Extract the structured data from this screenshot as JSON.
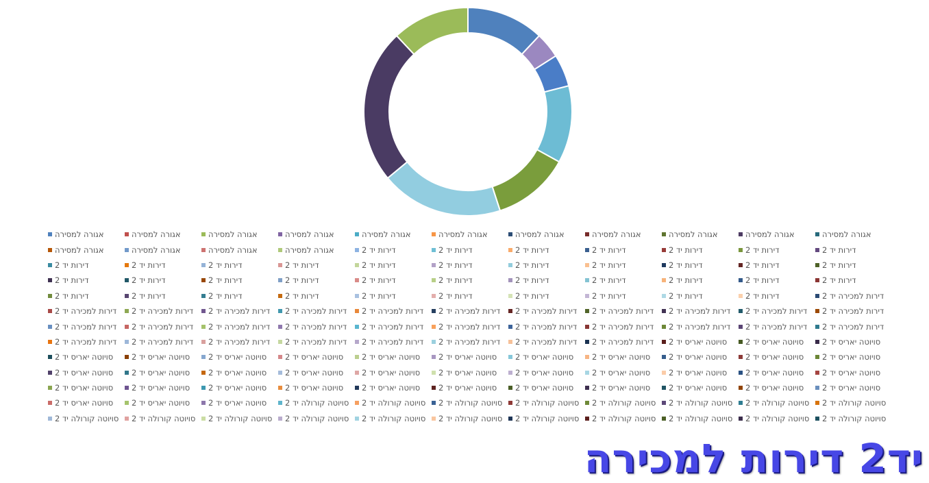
{
  "chart_data": {
    "type": "pie",
    "title": "",
    "donut": true,
    "legend_position": "bottom",
    "slices": [
      {
        "label": "אגורה למסירה",
        "value": 12,
        "color": "#4f81bd"
      },
      {
        "label": "אגורה למסירה",
        "value": 4,
        "color": "#9b88c0"
      },
      {
        "label": "דירות יד 2",
        "value": 5,
        "color": "#4a7dc7"
      },
      {
        "label": "דירות יד 2",
        "value": 12,
        "color": "#6dbcd4"
      },
      {
        "label": "דירות למכירה יד 2",
        "value": 12,
        "color": "#7a9d3c"
      },
      {
        "label": "סויוטה יאריס יד 2",
        "value": 19,
        "color": "#92cde0"
      },
      {
        "label": "סויוטה קורולה יד 2",
        "value": 24,
        "color": "#4a3b63"
      },
      {
        "label": "סויוטה קורולה יד 2",
        "value": 12,
        "color": "#9bbb59"
      }
    ],
    "legend": [
      {
        "label": "אגורה למסירה",
        "color": "#4f81bd"
      },
      {
        "label": "אגורה למסירה",
        "color": "#c0504d"
      },
      {
        "label": "אגורה למסירה",
        "color": "#9bbb59"
      },
      {
        "label": "אגורה למסירה",
        "color": "#8064a2"
      },
      {
        "label": "אגורה למסירה",
        "color": "#4bacc6"
      },
      {
        "label": "אגורה למסירה",
        "color": "#f79646"
      },
      {
        "label": "אגורה למסירה",
        "color": "#2c4d75"
      },
      {
        "label": "אגורה למסירה",
        "color": "#772c2a"
      },
      {
        "label": "אגורה למסירה",
        "color": "#5f7530"
      },
      {
        "label": "אגורה למסירה",
        "color": "#4d3b62"
      },
      {
        "label": "אגורה למסירה",
        "color": "#276a7c"
      },
      {
        "label": "אגורה למסירה",
        "color": "#b65708"
      },
      {
        "label": "אגורה למסירה",
        "color": "#729aca"
      },
      {
        "label": "אגורה למסירה",
        "color": "#cd7371"
      },
      {
        "label": "אגורה למסירה",
        "color": "#afc97a"
      },
      {
        "label": "דירות יד 2",
        "color": "#8db3e2"
      },
      {
        "label": "דירות יד 2",
        "color": "#6fbfd5"
      },
      {
        "label": "דירות יד 2",
        "color": "#f9ab6b"
      },
      {
        "label": "דירות יד 2",
        "color": "#3a5f8f"
      },
      {
        "label": "דירות יד 2",
        "color": "#973b38"
      },
      {
        "label": "דירות יד 2",
        "color": "#7a963d"
      },
      {
        "label": "דירות יד 2",
        "color": "#63497f"
      },
      {
        "label": "דירות יד 2",
        "color": "#3a8ba1"
      },
      {
        "label": "דירות יד 2",
        "color": "#e5790e"
      },
      {
        "label": "דירות יד 2",
        "color": "#95b3d7"
      },
      {
        "label": "דירות יד 2",
        "color": "#d99694"
      },
      {
        "label": "דירות יד 2",
        "color": "#c3d69b"
      },
      {
        "label": "דירות יד 2",
        "color": "#b2a1c7"
      },
      {
        "label": "דירות יד 2",
        "color": "#93cddd"
      },
      {
        "label": "דירות יד 2",
        "color": "#fac090"
      },
      {
        "label": "דירות יד 2",
        "color": "#1f3a5f"
      },
      {
        "label": "דירות יד 2",
        "color": "#632523"
      },
      {
        "label": "דירות יד 2",
        "color": "#4f6228"
      },
      {
        "label": "דירות יד 2",
        "color": "#3f3151"
      },
      {
        "label": "דירות יד 2",
        "color": "#215867"
      },
      {
        "label": "דירות יד 2",
        "color": "#984807"
      },
      {
        "label": "דירות יד 2",
        "color": "#7f9fc6"
      },
      {
        "label": "דירות יד 2",
        "color": "#d98b88"
      },
      {
        "label": "דירות יד 2",
        "color": "#b8cf88"
      },
      {
        "label": "דירות יד 2",
        "color": "#a393bb"
      },
      {
        "label": "דירות יד 2",
        "color": "#84c3d3"
      },
      {
        "label": "דירות יד 2",
        "color": "#f7b37a"
      },
      {
        "label": "דירות יד 2",
        "color": "#345a8a"
      },
      {
        "label": "דירות יד 2",
        "color": "#8b3533"
      },
      {
        "label": "דירות יד 2",
        "color": "#718b3d"
      },
      {
        "label": "דירות יד 2",
        "color": "#574570"
      },
      {
        "label": "דירות יד 2",
        "color": "#347d91"
      },
      {
        "label": "דירות יד 2",
        "color": "#c46a10"
      },
      {
        "label": "דירות יד 2",
        "color": "#a9c1e0"
      },
      {
        "label": "דירות יד 2",
        "color": "#e3aeac"
      },
      {
        "label": "דירות יד 2",
        "color": "#d5e3b6"
      },
      {
        "label": "דירות יד 2",
        "color": "#c3b6d5"
      },
      {
        "label": "דירות יד 2",
        "color": "#aed9e5"
      },
      {
        "label": "דירות יד 2",
        "color": "#fbd0ac"
      },
      {
        "label": "דירות למכירה יד 2",
        "color": "#2a4a74"
      },
      {
        "label": "דירות למכירה יד 2",
        "color": "#a84a48"
      },
      {
        "label": "דירות למכירה יד 2",
        "color": "#8ea854"
      },
      {
        "label": "דירות למכירה יד 2",
        "color": "#71578f"
      },
      {
        "label": "דירות למכירה יד 2",
        "color": "#4198ae"
      },
      {
        "label": "דירות למכירה יד 2",
        "color": "#e8883a"
      },
      {
        "label": "דירות למכירה יד 2",
        "color": "#263f60"
      },
      {
        "label": "דירות למכירה יד 2",
        "color": "#662624"
      },
      {
        "label": "דירות למכירה יד 2",
        "color": "#52652a"
      },
      {
        "label": "דירות למכירה יד 2",
        "color": "#433354"
      },
      {
        "label": "דירות למכירה יד 2",
        "color": "#235b6b"
      },
      {
        "label": "דירות למכירה יד 2",
        "color": "#9c4a07"
      },
      {
        "label": "דירות למכירה יד 2",
        "color": "#688fc0"
      },
      {
        "label": "דירות למכירה יד 2",
        "color": "#c66663"
      },
      {
        "label": "דירות למכירה יד 2",
        "color": "#a5c26b"
      },
      {
        "label": "דירות למכירה יד 2",
        "color": "#8f78ad"
      },
      {
        "label": "דירות למכירה יד 2",
        "color": "#5ab6cf"
      },
      {
        "label": "דירות למכירה יד 2",
        "color": "#f8a15c"
      },
      {
        "label": "דירות למכירה יד 2",
        "color": "#3d6399"
      },
      {
        "label": "דירות למכירה יד 2",
        "color": "#883634"
      },
      {
        "label": "דירות למכירה יד 2",
        "color": "#6d8837"
      },
      {
        "label": "דירות למכירה יד 2",
        "color": "#5a4574"
      },
      {
        "label": "דירות למכירה יד 2",
        "color": "#2f7a8e"
      },
      {
        "label": "דירות למכירה יד 2",
        "color": "#e87511"
      },
      {
        "label": "דירות למכירה יד 2",
        "color": "#9db7d9"
      },
      {
        "label": "דירות למכירה יד 2",
        "color": "#d9a09e"
      },
      {
        "label": "דירות למכירה יד 2",
        "color": "#c5d8a0"
      },
      {
        "label": "דירות למכירה יד 2",
        "color": "#b6a8cb"
      },
      {
        "label": "דירות למכירה יד 2",
        "color": "#9bd0de"
      },
      {
        "label": "דירות למכירה יד 2",
        "color": "#f6c199"
      },
      {
        "label": "דירות למכירה יד 2",
        "color": "#1b3352"
      },
      {
        "label": "סויוטה יאריס יד 2",
        "color": "#5a1e1c"
      },
      {
        "label": "סויוטה יאריס יד 2",
        "color": "#475a24"
      },
      {
        "label": "סויוטה יאריס יד 2",
        "color": "#392b49"
      },
      {
        "label": "סויוטה יאריס יד 2",
        "color": "#1d4e5c"
      },
      {
        "label": "סויוטה יאריס יד 2",
        "color": "#8a4006"
      },
      {
        "label": "סויוטה יאריס יד 2",
        "color": "#86a7cf"
      },
      {
        "label": "סויוטה יאריס יד 2",
        "color": "#d4878a"
      },
      {
        "label": "סויוטה יאריס יד 2",
        "color": "#bccf8f"
      },
      {
        "label": "סויוטה יאריס יד 2",
        "color": "#a897c1"
      },
      {
        "label": "סויוטה יאריס יד 2",
        "color": "#86c7d9"
      },
      {
        "label": "סויוטה יאריס יד 2",
        "color": "#f7b584"
      },
      {
        "label": "סויוטה יאריס יד 2",
        "color": "#355d8c"
      },
      {
        "label": "סויוטה יאריס יד 2",
        "color": "#8c3a38"
      },
      {
        "label": "סויוטה יאריס יד 2",
        "color": "#6b8636"
      },
      {
        "label": "סויוטה יאריס יד 2",
        "color": "#51416a"
      },
      {
        "label": "סויוטה יאריס יד 2",
        "color": "#31778a"
      },
      {
        "label": "סויוטה יאריס יד 2",
        "color": "#c5670e"
      },
      {
        "label": "סויוטה יאריס יד 2",
        "color": "#a5bcdb"
      },
      {
        "label": "סויוטה יאריס יד 2",
        "color": "#dea7a5"
      },
      {
        "label": "סויוטה יאריס יד 2",
        "color": "#cfe0ad"
      },
      {
        "label": "סויוטה יאריס יד 2",
        "color": "#bdb0d0"
      },
      {
        "label": "סויוטה יאריס יד 2",
        "color": "#a7d6e3"
      },
      {
        "label": "סויוטה יאריס יד 2",
        "color": "#fbcca8"
      },
      {
        "label": "סויוטה יאריס יד 2",
        "color": "#2b5283"
      },
      {
        "label": "סויוטה יאריס יד 2",
        "color": "#a54541"
      },
      {
        "label": "סויוטה יאריס יד 2",
        "color": "#8aa550"
      },
      {
        "label": "סויוטה יאריס יד 2",
        "color": "#6e5490"
      },
      {
        "label": "סויוטה יאריס יד 2",
        "color": "#3d98b0"
      },
      {
        "label": "סויוטה יאריס יד 2",
        "color": "#e88d3e"
      },
      {
        "label": "סויוטה יאריס יד 2",
        "color": "#22395a"
      },
      {
        "label": "סויוטה יאריס יד 2",
        "color": "#5e2421"
      },
      {
        "label": "סויוטה יאריס יד 2",
        "color": "#4a5e26"
      },
      {
        "label": "סויוטה יאריס יד 2",
        "color": "#3e2f4f"
      },
      {
        "label": "סויוטה יאריס יד 2",
        "color": "#205464"
      },
      {
        "label": "סויוטה יאריס יד 2",
        "color": "#914406"
      },
      {
        "label": "סויוטה יאריס יד 2",
        "color": "#6a8fbd"
      },
      {
        "label": "סויוטה יאריס יד 2",
        "color": "#ca6c69"
      },
      {
        "label": "סויוטה יאריס יד 2",
        "color": "#a6c46d"
      },
      {
        "label": "סויוטה יאריס יד 2",
        "color": "#8d77ab"
      },
      {
        "label": "סויוטה קורולה יד 2",
        "color": "#5fb5cc"
      },
      {
        "label": "סויוטה קורולה יד 2",
        "color": "#f6a061"
      },
      {
        "label": "סויוטה קורולה יד 2",
        "color": "#3a6295"
      },
      {
        "label": "סויוטה קורולה יד 2",
        "color": "#8e3936"
      },
      {
        "label": "סויוטה קורולה יד 2",
        "color": "#6f8a38"
      },
      {
        "label": "סויוטה קורולה יד 2",
        "color": "#5c4878"
      },
      {
        "label": "סויוטה קורולה יד 2",
        "color": "#2f7d92"
      },
      {
        "label": "סויוטה קורולה יד 2",
        "color": "#d8740d"
      },
      {
        "label": "סויוטה קורולה יד 2",
        "color": "#9fb8d8"
      },
      {
        "label": "סויוטה קורולה יד 2",
        "color": "#e0a2a0"
      },
      {
        "label": "סויוטה קורולה יד 2",
        "color": "#cbdda4"
      },
      {
        "label": "סויוטה קורולה יד 2",
        "color": "#b9accd"
      },
      {
        "label": "סויוטה קורולה יד 2",
        "color": "#a1d3e1"
      },
      {
        "label": "סויוטה קורולה יד 2",
        "color": "#f9c69f"
      },
      {
        "label": "סויוטה קורולה יד 2",
        "color": "#1e3556"
      },
      {
        "label": "סויוטה קורולה יד 2",
        "color": "#5c201e"
      },
      {
        "label": "סויוטה קורולה יד 2",
        "color": "#4c6027"
      },
      {
        "label": "סויוטה קורולה יד 2",
        "color": "#3b2d4c"
      },
      {
        "label": "סויוטה קורולה יד 2",
        "color": "#1e5160"
      }
    ]
  },
  "banner": {
    "text": "יד2 דירות למכירה"
  }
}
